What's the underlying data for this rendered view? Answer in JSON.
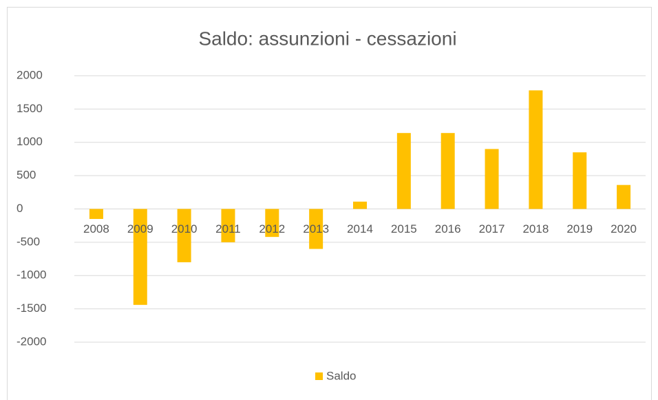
{
  "chart_data": {
    "type": "bar",
    "title": "Saldo: assunzioni - cessazioni",
    "categories": [
      "2008",
      "2009",
      "2010",
      "2011",
      "2012",
      "2013",
      "2014",
      "2015",
      "2016",
      "2017",
      "2018",
      "2019",
      "2020"
    ],
    "series": [
      {
        "name": "Saldo",
        "color": "#ffc000",
        "values": [
          -150,
          -1440,
          -800,
          -500,
          -420,
          -600,
          110,
          1140,
          1140,
          900,
          1780,
          850,
          360
        ]
      }
    ],
    "ylim": [
      -2000,
      2000
    ],
    "yticks": [
      -2000,
      -1500,
      -1000,
      -500,
      0,
      500,
      1000,
      1500,
      2000
    ],
    "grid": true,
    "legend": "bottom"
  }
}
